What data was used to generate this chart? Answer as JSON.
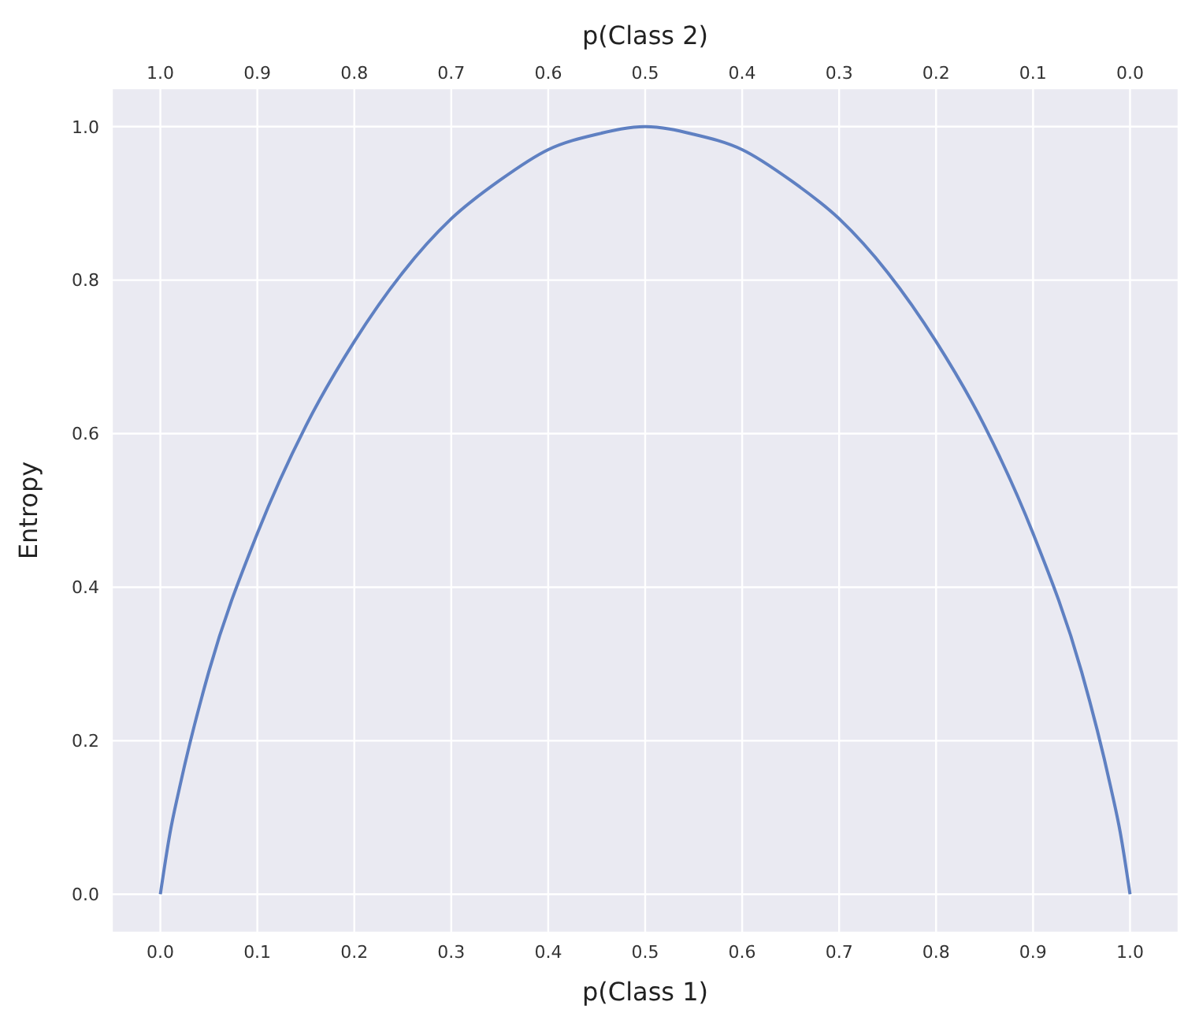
{
  "chart_data": {
    "type": "line",
    "xlabel": "p(Class 1)",
    "x2label": "p(Class 2)",
    "ylabel": "Entropy",
    "x": [
      0,
      0.01,
      0.02,
      0.05,
      0.1,
      0.15,
      0.2,
      0.25,
      0.3,
      0.35,
      0.4,
      0.45,
      0.5,
      0.55,
      0.6,
      0.65,
      0.7,
      0.75,
      0.8,
      0.85,
      0.9,
      0.95,
      0.98,
      0.99,
      1
    ],
    "series": [
      {
        "color": "#5f80c2",
        "values": [
          0,
          0.08,
          0.14,
          0.29,
          0.47,
          0.61,
          0.72,
          0.81,
          0.88,
          0.93,
          0.97,
          0.99,
          1,
          0.99,
          0.97,
          0.93,
          0.88,
          0.81,
          0.72,
          0.61,
          0.47,
          0.29,
          0.14,
          0.08,
          0
        ]
      }
    ],
    "xlim": [
      -0.05,
      1.05
    ],
    "xticks": [
      {
        "value": 0,
        "label": "0.0"
      },
      0.1,
      0.2,
      0.3,
      0.4,
      0.5,
      0.6,
      0.7,
      0.8,
      0.9,
      {
        "value": 1,
        "label": "1.0"
      }
    ],
    "x2lim": [
      1.05,
      -0.05
    ],
    "x2ticks": [
      {
        "value": 1,
        "label": "1.0"
      },
      0.9,
      0.8,
      0.7,
      0.6,
      0.5,
      0.4,
      0.3,
      0.2,
      0.1,
      {
        "value": 0,
        "label": "0.0"
      }
    ],
    "ylim": [
      -0.05,
      1.05
    ],
    "yticks": [
      {
        "value": 0,
        "label": "0.0"
      },
      0.2,
      0.4,
      0.6,
      0.8,
      {
        "value": 1,
        "label": "1.0"
      }
    ],
    "grid": true,
    "marker": "none",
    "line_style": "solid",
    "legend": false
  }
}
